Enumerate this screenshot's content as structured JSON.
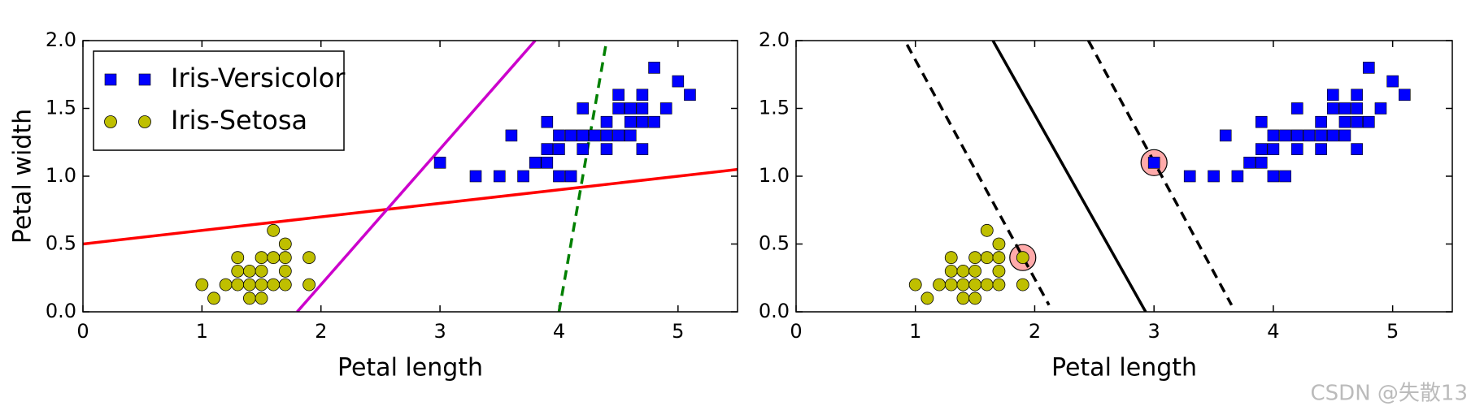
{
  "chart_data": [
    {
      "type": "scatter",
      "xlabel": "Petal length",
      "ylabel": "Petal width",
      "xlim": [
        0,
        5.5
      ],
      "ylim": [
        0,
        2
      ],
      "xticks": [
        0,
        1,
        2,
        3,
        4,
        5
      ],
      "yticks": [
        {
          "value": 0,
          "label": "0.0"
        },
        {
          "value": 0.5,
          "label": "0.5"
        },
        {
          "value": 1,
          "label": "1.0"
        },
        {
          "value": 1.5,
          "label": "1.5"
        },
        {
          "value": 2,
          "label": "2.0"
        }
      ],
      "legend": "upper left",
      "series": [
        {
          "name": "Iris-Versicolor",
          "color": "#0000ff",
          "marker": "square",
          "x": [
            3.0,
            3.3,
            3.5,
            3.6,
            3.7,
            3.8,
            3.9,
            3.9,
            3.9,
            4.0,
            4.0,
            4.0,
            4.1,
            4.1,
            4.2,
            4.2,
            4.2,
            4.3,
            4.4,
            4.4,
            4.4,
            4.5,
            4.5,
            4.5,
            4.6,
            4.6,
            4.6,
            4.7,
            4.7,
            4.7,
            4.7,
            4.8,
            4.8,
            4.9,
            5.0,
            5.1
          ],
          "values": [
            1.1,
            1.0,
            1.0,
            1.3,
            1.0,
            1.1,
            1.1,
            1.2,
            1.4,
            1.0,
            1.2,
            1.3,
            1.0,
            1.3,
            1.2,
            1.3,
            1.5,
            1.3,
            1.2,
            1.3,
            1.4,
            1.3,
            1.5,
            1.6,
            1.3,
            1.4,
            1.5,
            1.2,
            1.4,
            1.5,
            1.6,
            1.4,
            1.8,
            1.5,
            1.7,
            1.6
          ]
        },
        {
          "name": "Iris-Setosa",
          "color": "#bfbf00",
          "marker": "circle",
          "x": [
            1.0,
            1.1,
            1.2,
            1.3,
            1.3,
            1.3,
            1.4,
            1.4,
            1.4,
            1.5,
            1.5,
            1.5,
            1.5,
            1.6,
            1.6,
            1.6,
            1.7,
            1.7,
            1.7,
            1.7,
            1.9,
            1.9
          ],
          "values": [
            0.2,
            0.1,
            0.2,
            0.2,
            0.3,
            0.4,
            0.1,
            0.2,
            0.3,
            0.1,
            0.2,
            0.3,
            0.4,
            0.2,
            0.4,
            0.6,
            0.2,
            0.3,
            0.4,
            0.5,
            0.2,
            0.4
          ]
        }
      ],
      "lines": [
        {
          "color": "#ff0000",
          "style": "solid",
          "x": [
            0,
            5.5
          ],
          "values": [
            0.5,
            1.05
          ]
        },
        {
          "color": "#cc00cc",
          "style": "solid",
          "x": [
            1.8,
            3.8
          ],
          "values": [
            0,
            2.0
          ]
        },
        {
          "color": "#008000",
          "style": "dashed",
          "x": [
            4.0,
            4.4
          ],
          "values": [
            0,
            2.0
          ]
        }
      ]
    },
    {
      "type": "scatter",
      "xlabel": "Petal length",
      "xlim": [
        0,
        5.5
      ],
      "ylim": [
        0,
        2
      ],
      "xticks": [
        0,
        1,
        2,
        3,
        4,
        5
      ],
      "yticks": [
        {
          "value": 0,
          "label": "0.0"
        },
        {
          "value": 0.5,
          "label": "0.5"
        },
        {
          "value": 1,
          "label": "1.0"
        },
        {
          "value": 1.5,
          "label": "1.5"
        },
        {
          "value": 2,
          "label": "2.0"
        }
      ],
      "highlights": {
        "color": "#ffaaaa",
        "x": [
          1.9,
          3.0
        ],
        "values": [
          0.4,
          1.1
        ]
      },
      "series": [
        {
          "color": "#0000ff",
          "marker": "square",
          "x": [
            3.0,
            3.3,
            3.5,
            3.6,
            3.7,
            3.8,
            3.9,
            3.9,
            3.9,
            4.0,
            4.0,
            4.0,
            4.1,
            4.1,
            4.2,
            4.2,
            4.2,
            4.3,
            4.4,
            4.4,
            4.4,
            4.5,
            4.5,
            4.5,
            4.6,
            4.6,
            4.6,
            4.7,
            4.7,
            4.7,
            4.7,
            4.8,
            4.8,
            4.9,
            5.0,
            5.1
          ],
          "values": [
            1.1,
            1.0,
            1.0,
            1.3,
            1.0,
            1.1,
            1.1,
            1.2,
            1.4,
            1.0,
            1.2,
            1.3,
            1.0,
            1.3,
            1.2,
            1.3,
            1.5,
            1.3,
            1.2,
            1.3,
            1.4,
            1.3,
            1.5,
            1.6,
            1.3,
            1.4,
            1.5,
            1.2,
            1.4,
            1.5,
            1.6,
            1.4,
            1.8,
            1.5,
            1.7,
            1.6
          ]
        },
        {
          "color": "#bfbf00",
          "marker": "circle",
          "x": [
            1.0,
            1.1,
            1.2,
            1.3,
            1.3,
            1.3,
            1.4,
            1.4,
            1.4,
            1.5,
            1.5,
            1.5,
            1.5,
            1.6,
            1.6,
            1.6,
            1.7,
            1.7,
            1.7,
            1.7,
            1.9,
            1.9
          ],
          "values": [
            0.2,
            0.1,
            0.2,
            0.2,
            0.3,
            0.4,
            0.1,
            0.2,
            0.3,
            0.1,
            0.2,
            0.3,
            0.4,
            0.2,
            0.4,
            0.6,
            0.2,
            0.3,
            0.4,
            0.5,
            0.2,
            0.4
          ]
        }
      ],
      "lines": [
        {
          "color": "#000000",
          "style": "dashed",
          "x": [
            0.93,
            2.12
          ],
          "values": [
            1.97,
            0.05
          ]
        },
        {
          "color": "#000000",
          "style": "solid",
          "x": [
            1.65,
            2.93
          ],
          "values": [
            2.0,
            0
          ]
        },
        {
          "color": "#000000",
          "style": "dashed",
          "x": [
            2.45,
            3.65
          ],
          "values": [
            2.0,
            0.05
          ]
        }
      ]
    }
  ],
  "watermark": "CSDN @失散13"
}
